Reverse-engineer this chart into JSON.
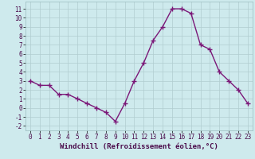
{
  "x": [
    0,
    1,
    2,
    3,
    4,
    5,
    6,
    7,
    8,
    9,
    10,
    11,
    12,
    13,
    14,
    15,
    16,
    17,
    18,
    19,
    20,
    21,
    22,
    23
  ],
  "y": [
    3,
    2.5,
    2.5,
    1.5,
    1.5,
    1,
    0.5,
    0,
    -0.5,
    -1.5,
    0.5,
    3,
    5,
    7.5,
    9,
    11,
    11,
    10.5,
    7,
    6.5,
    4,
    3,
    2,
    0.5
  ],
  "xlabel": "Windchill (Refroidissement éolien,°C)",
  "line_color": "#7b1878",
  "marker": "+",
  "marker_size": 4,
  "marker_lw": 1.0,
  "line_width": 1.0,
  "bg_color": "#ceeaed",
  "grid_color": "#b0cdd0",
  "xlim": [
    -0.5,
    23.5
  ],
  "ylim": [
    -2.5,
    11.8
  ],
  "xticks": [
    0,
    1,
    2,
    3,
    4,
    5,
    6,
    7,
    8,
    9,
    10,
    11,
    12,
    13,
    14,
    15,
    16,
    17,
    18,
    19,
    20,
    21,
    22,
    23
  ],
  "yticks": [
    -2,
    -1,
    0,
    1,
    2,
    3,
    4,
    5,
    6,
    7,
    8,
    9,
    10,
    11
  ],
  "tick_fontsize": 5.5,
  "xlabel_fontsize": 6.5
}
